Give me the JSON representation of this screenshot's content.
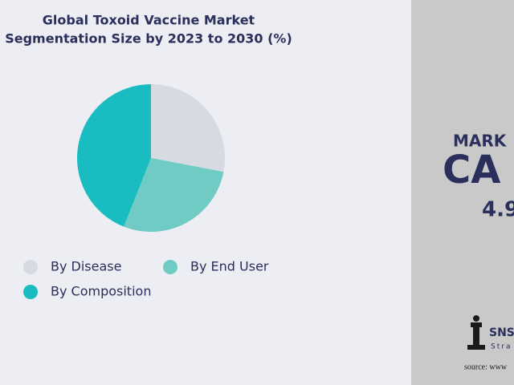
{
  "chart_data": {
    "type": "pie",
    "title": [
      "Global Toxoid Vaccine Market",
      "Segmentation Size by 2023 to 2030 (%)"
    ],
    "categories": [
      "By Disease",
      "By End User",
      "By Composition"
    ],
    "values": [
      28,
      28,
      44
    ],
    "colors": [
      "#d5dbe0",
      "#6fcbc4",
      "#18bcc1"
    ]
  },
  "side_panel": {
    "heading": "MARK",
    "big": "CA",
    "figure": "4.9",
    "logo": "SNS",
    "logo_sub": "Stra",
    "source": "source: www"
  }
}
